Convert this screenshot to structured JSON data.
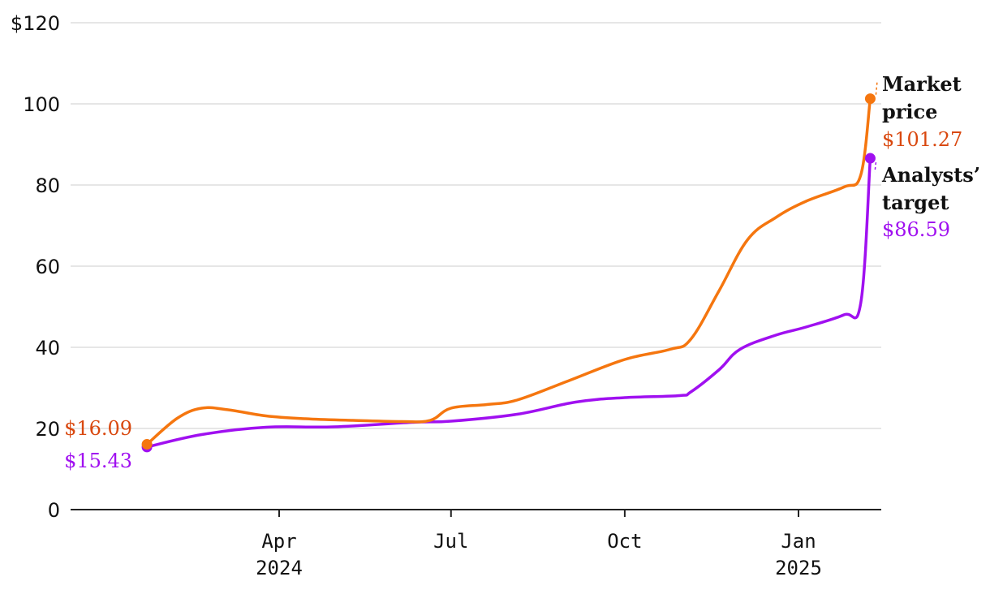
{
  "chart_data": {
    "type": "line",
    "title": "",
    "xlabel": "",
    "ylabel": "",
    "ylim": [
      0,
      120
    ],
    "grid": true,
    "y_ticks": [
      {
        "value": 0,
        "label": "0"
      },
      {
        "value": 20,
        "label": "20"
      },
      {
        "value": 40,
        "label": "40"
      },
      {
        "value": 60,
        "label": "60"
      },
      {
        "value": 80,
        "label": "80"
      },
      {
        "value": 100,
        "label": "100"
      },
      {
        "value": 120,
        "label": "$120"
      }
    ],
    "x_ticks": [
      {
        "date": "2024-04-01",
        "month": "Apr",
        "year": "2024"
      },
      {
        "date": "2024-07-01",
        "month": "Jul",
        "year": ""
      },
      {
        "date": "2024-10-01",
        "month": "Oct",
        "year": ""
      },
      {
        "date": "2025-01-01",
        "month": "Jan",
        "year": "2025"
      }
    ],
    "series": [
      {
        "name": "Market price",
        "name_lines": [
          "Market",
          "price"
        ],
        "color": "#f5760f",
        "label_color": "#d9480f",
        "start_label": "$16.09",
        "end_label": "$101.27",
        "points": [
          [
            "2024-01-22",
            16.09
          ],
          [
            "2024-02-07",
            22.5
          ],
          [
            "2024-02-20",
            25.0
          ],
          [
            "2024-03-05",
            24.6
          ],
          [
            "2024-03-25",
            23.1
          ],
          [
            "2024-04-15",
            22.4
          ],
          [
            "2024-05-10",
            22.0
          ],
          [
            "2024-06-05",
            21.7
          ],
          [
            "2024-06-20",
            22.0
          ],
          [
            "2024-07-01",
            25.0
          ],
          [
            "2024-07-20",
            25.9
          ],
          [
            "2024-08-05",
            27.0
          ],
          [
            "2024-09-01",
            31.7
          ],
          [
            "2024-10-01",
            37.0
          ],
          [
            "2024-10-25",
            39.5
          ],
          [
            "2024-11-05",
            42.0
          ],
          [
            "2024-11-20",
            54.0
          ],
          [
            "2024-12-05",
            66.5
          ],
          [
            "2024-12-20",
            72.0
          ],
          [
            "2025-01-05",
            76.0
          ],
          [
            "2025-01-25",
            79.5
          ],
          [
            "2025-02-03",
            82.5
          ],
          [
            "2025-02-08",
            101.27
          ]
        ]
      },
      {
        "name": "Analysts' target",
        "name_lines": [
          "Analysts’",
          "target"
        ],
        "color": "#a010f0",
        "label_color": "#a010f0",
        "start_label": "$15.43",
        "end_label": "$86.59",
        "points": [
          [
            "2024-01-22",
            15.43
          ],
          [
            "2024-02-20",
            18.5
          ],
          [
            "2024-03-25",
            20.3
          ],
          [
            "2024-04-30",
            20.4
          ],
          [
            "2024-06-10",
            21.5
          ],
          [
            "2024-07-01",
            21.8
          ],
          [
            "2024-08-05",
            23.5
          ],
          [
            "2024-09-05",
            26.5
          ],
          [
            "2024-10-01",
            27.6
          ],
          [
            "2024-10-30",
            28.1
          ],
          [
            "2024-11-05",
            29.0
          ],
          [
            "2024-11-20",
            34.5
          ],
          [
            "2024-12-01",
            39.5
          ],
          [
            "2024-12-20",
            43.0
          ],
          [
            "2025-01-05",
            45.0
          ],
          [
            "2025-01-25",
            48.0
          ],
          [
            "2025-02-03",
            51.0
          ],
          [
            "2025-02-08",
            86.59
          ]
        ]
      }
    ]
  }
}
